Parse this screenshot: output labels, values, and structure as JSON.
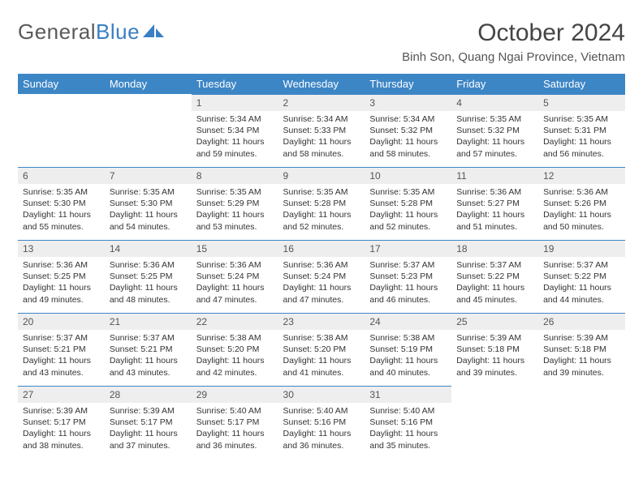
{
  "logo": {
    "text1": "General",
    "text2": "Blue"
  },
  "header": {
    "month_title": "October 2024",
    "location": "Binh Son, Quang Ngai Province, Vietnam"
  },
  "colors": {
    "header_bg": "#3d86c6",
    "header_text": "#ffffff",
    "daynum_bg": "#eeeeee",
    "border_top": "#3d86c6"
  },
  "weekdays": [
    "Sunday",
    "Monday",
    "Tuesday",
    "Wednesday",
    "Thursday",
    "Friday",
    "Saturday"
  ],
  "weeks": [
    [
      null,
      null,
      {
        "n": "1",
        "sr": "5:34 AM",
        "ss": "5:34 PM",
        "dl": "11 hours and 59 minutes."
      },
      {
        "n": "2",
        "sr": "5:34 AM",
        "ss": "5:33 PM",
        "dl": "11 hours and 58 minutes."
      },
      {
        "n": "3",
        "sr": "5:34 AM",
        "ss": "5:32 PM",
        "dl": "11 hours and 58 minutes."
      },
      {
        "n": "4",
        "sr": "5:35 AM",
        "ss": "5:32 PM",
        "dl": "11 hours and 57 minutes."
      },
      {
        "n": "5",
        "sr": "5:35 AM",
        "ss": "5:31 PM",
        "dl": "11 hours and 56 minutes."
      }
    ],
    [
      {
        "n": "6",
        "sr": "5:35 AM",
        "ss": "5:30 PM",
        "dl": "11 hours and 55 minutes."
      },
      {
        "n": "7",
        "sr": "5:35 AM",
        "ss": "5:30 PM",
        "dl": "11 hours and 54 minutes."
      },
      {
        "n": "8",
        "sr": "5:35 AM",
        "ss": "5:29 PM",
        "dl": "11 hours and 53 minutes."
      },
      {
        "n": "9",
        "sr": "5:35 AM",
        "ss": "5:28 PM",
        "dl": "11 hours and 52 minutes."
      },
      {
        "n": "10",
        "sr": "5:35 AM",
        "ss": "5:28 PM",
        "dl": "11 hours and 52 minutes."
      },
      {
        "n": "11",
        "sr": "5:36 AM",
        "ss": "5:27 PM",
        "dl": "11 hours and 51 minutes."
      },
      {
        "n": "12",
        "sr": "5:36 AM",
        "ss": "5:26 PM",
        "dl": "11 hours and 50 minutes."
      }
    ],
    [
      {
        "n": "13",
        "sr": "5:36 AM",
        "ss": "5:25 PM",
        "dl": "11 hours and 49 minutes."
      },
      {
        "n": "14",
        "sr": "5:36 AM",
        "ss": "5:25 PM",
        "dl": "11 hours and 48 minutes."
      },
      {
        "n": "15",
        "sr": "5:36 AM",
        "ss": "5:24 PM",
        "dl": "11 hours and 47 minutes."
      },
      {
        "n": "16",
        "sr": "5:36 AM",
        "ss": "5:24 PM",
        "dl": "11 hours and 47 minutes."
      },
      {
        "n": "17",
        "sr": "5:37 AM",
        "ss": "5:23 PM",
        "dl": "11 hours and 46 minutes."
      },
      {
        "n": "18",
        "sr": "5:37 AM",
        "ss": "5:22 PM",
        "dl": "11 hours and 45 minutes."
      },
      {
        "n": "19",
        "sr": "5:37 AM",
        "ss": "5:22 PM",
        "dl": "11 hours and 44 minutes."
      }
    ],
    [
      {
        "n": "20",
        "sr": "5:37 AM",
        "ss": "5:21 PM",
        "dl": "11 hours and 43 minutes."
      },
      {
        "n": "21",
        "sr": "5:37 AM",
        "ss": "5:21 PM",
        "dl": "11 hours and 43 minutes."
      },
      {
        "n": "22",
        "sr": "5:38 AM",
        "ss": "5:20 PM",
        "dl": "11 hours and 42 minutes."
      },
      {
        "n": "23",
        "sr": "5:38 AM",
        "ss": "5:20 PM",
        "dl": "11 hours and 41 minutes."
      },
      {
        "n": "24",
        "sr": "5:38 AM",
        "ss": "5:19 PM",
        "dl": "11 hours and 40 minutes."
      },
      {
        "n": "25",
        "sr": "5:39 AM",
        "ss": "5:18 PM",
        "dl": "11 hours and 39 minutes."
      },
      {
        "n": "26",
        "sr": "5:39 AM",
        "ss": "5:18 PM",
        "dl": "11 hours and 39 minutes."
      }
    ],
    [
      {
        "n": "27",
        "sr": "5:39 AM",
        "ss": "5:17 PM",
        "dl": "11 hours and 38 minutes."
      },
      {
        "n": "28",
        "sr": "5:39 AM",
        "ss": "5:17 PM",
        "dl": "11 hours and 37 minutes."
      },
      {
        "n": "29",
        "sr": "5:40 AM",
        "ss": "5:17 PM",
        "dl": "11 hours and 36 minutes."
      },
      {
        "n": "30",
        "sr": "5:40 AM",
        "ss": "5:16 PM",
        "dl": "11 hours and 36 minutes."
      },
      {
        "n": "31",
        "sr": "5:40 AM",
        "ss": "5:16 PM",
        "dl": "11 hours and 35 minutes."
      },
      null,
      null
    ]
  ],
  "labels": {
    "sunrise": "Sunrise:",
    "sunset": "Sunset:",
    "daylight": "Daylight:"
  }
}
